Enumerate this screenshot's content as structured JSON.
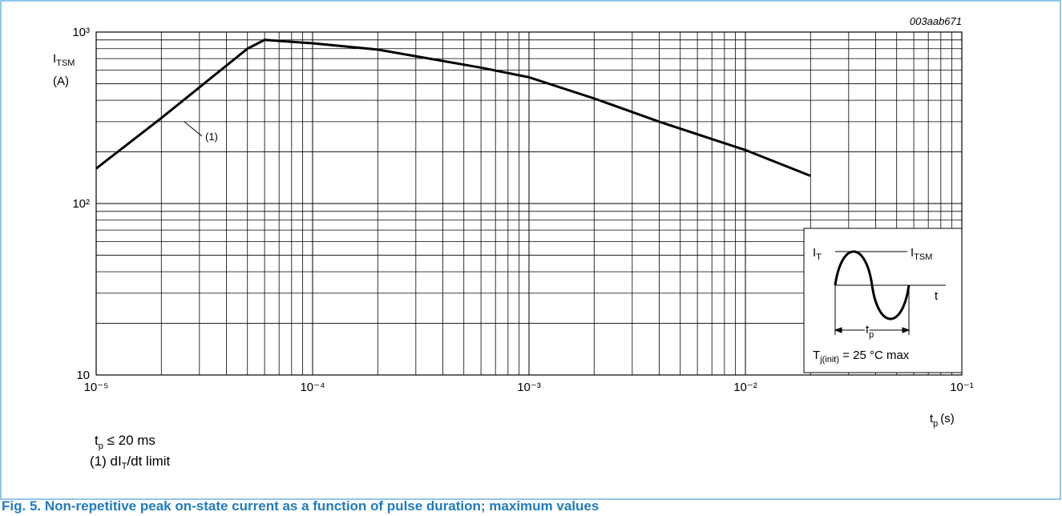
{
  "chart_data": {
    "type": "line",
    "code": "003aab671",
    "y_label": {
      "main": "I",
      "sub": "TSM",
      "unit": "(A)"
    },
    "x_label": {
      "main": "t",
      "sub": "p",
      "unit": "(s)"
    },
    "x_log": true,
    "y_log": true,
    "grid": true,
    "xlim": [
      1e-05,
      0.1
    ],
    "ylim": [
      10,
      1000
    ],
    "xticks": [
      {
        "value": 1e-05,
        "label": "10⁻⁵"
      },
      {
        "value": 0.0001,
        "label": "10⁻⁴"
      },
      {
        "value": 0.001,
        "label": "10⁻³"
      },
      {
        "value": 0.01,
        "label": "10⁻²"
      },
      {
        "value": 0.1,
        "label": "10⁻¹"
      }
    ],
    "yticks": [
      10,
      {
        "value": 100,
        "label": "10²"
      },
      {
        "value": 1000,
        "label": "10³"
      }
    ],
    "series": [
      {
        "color": "#000000",
        "x": [
          1e-05,
          2e-05,
          5e-05,
          6e-05,
          0.0001,
          0.0002,
          0.0006,
          0.001,
          0.002,
          0.004,
          0.01,
          0.02
        ],
        "values": [
          160,
          315,
          800,
          900,
          860,
          790,
          620,
          545,
          410,
          300,
          205,
          145
        ]
      }
    ],
    "annotation": "(1)",
    "inset": {
      "i_t": {
        "main": "I",
        "sub": "T"
      },
      "i_tsm": {
        "main": "I",
        "sub": "TSM"
      },
      "t": "t",
      "tp": {
        "main": "t",
        "sub": "p"
      },
      "condition": {
        "main": "T",
        "sub": "j(init)",
        "rest": " = 25 °C max"
      }
    },
    "notes": [
      {
        "main": "t",
        "sub": "p",
        "rest": " ≤ 20 ms"
      },
      {
        "pre": "(1) dI",
        "sub": "T",
        "rest": "/dt limit"
      }
    ],
    "caption": "Fig. 5. Non-repetitive peak on-state current as a function of pulse duration; maximum values"
  }
}
